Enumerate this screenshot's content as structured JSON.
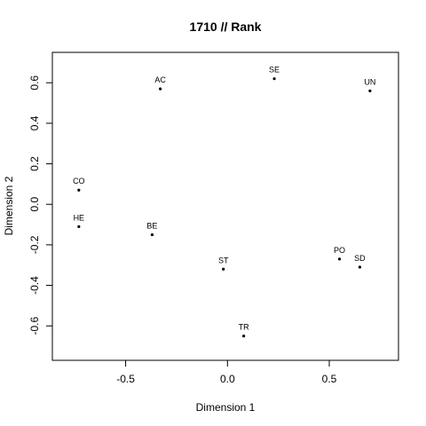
{
  "chart_data": {
    "type": "scatter",
    "title": "1710 // Rank",
    "xlabel": "Dimension 1",
    "ylabel": "Dimension 2",
    "xlim": [
      -0.86,
      0.84
    ],
    "ylim": [
      -0.77,
      0.75
    ],
    "xticks": [
      -0.5,
      0.0,
      0.5
    ],
    "xtick_labels": [
      "-0.5",
      "0.0",
      "0.5"
    ],
    "yticks": [
      -0.6,
      -0.4,
      -0.2,
      0.0,
      0.2,
      0.4,
      0.6
    ],
    "ytick_labels": [
      "-0.6",
      "-0.4",
      "-0.2",
      "0.0",
      "0.2",
      "0.4",
      "0.6"
    ],
    "grid": false,
    "point_color": "#000000",
    "points": [
      {
        "label": "AC",
        "x": -0.33,
        "y": 0.57
      },
      {
        "label": "SE",
        "x": 0.23,
        "y": 0.62
      },
      {
        "label": "UN",
        "x": 0.7,
        "y": 0.56
      },
      {
        "label": "CO",
        "x": -0.73,
        "y": 0.07
      },
      {
        "label": "HE",
        "x": -0.73,
        "y": -0.11
      },
      {
        "label": "BE",
        "x": -0.37,
        "y": -0.15
      },
      {
        "label": "ST",
        "x": -0.02,
        "y": -0.32
      },
      {
        "label": "PO",
        "x": 0.55,
        "y": -0.27
      },
      {
        "label": "SD",
        "x": 0.65,
        "y": -0.31
      },
      {
        "label": "TR",
        "x": 0.08,
        "y": -0.65
      }
    ]
  }
}
